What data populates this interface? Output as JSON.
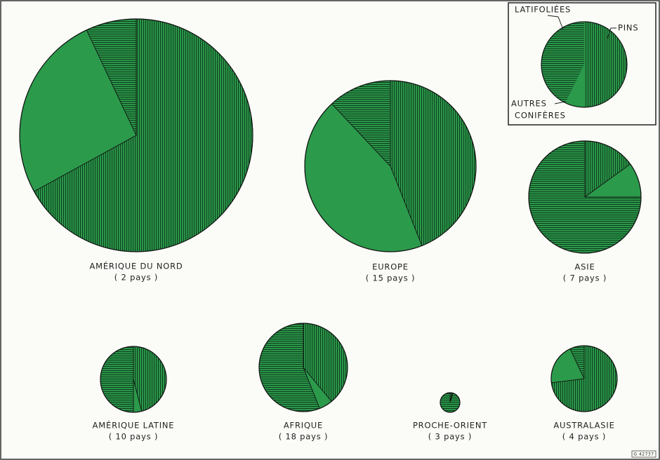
{
  "legend": {
    "categories": [
      "PINS",
      "AUTRES",
      "LATIFOLIÉES"
    ],
    "category_note": "CONIFÈRES",
    "patterns": [
      "vertical",
      "solid",
      "horizontal"
    ]
  },
  "chart_data": [
    {
      "type": "pie",
      "title": "AMÉRIQUE DU NORD",
      "subtitle": "( 2 pays )",
      "values": [
        67,
        26,
        7
      ]
    },
    {
      "type": "pie",
      "title": "EUROPE",
      "subtitle": "( 15 pays )",
      "values": [
        44,
        44,
        12
      ]
    },
    {
      "type": "pie",
      "title": "ASIE",
      "subtitle": "( 7 pays )",
      "values": [
        15,
        10,
        75
      ]
    },
    {
      "type": "pie",
      "title": "AMÉRIQUE LATINE",
      "subtitle": "( 10 pays )",
      "values": [
        46,
        4,
        50
      ]
    },
    {
      "type": "pie",
      "title": "AFRIQUE",
      "subtitle": "( 18 pays )",
      "values": [
        39,
        5,
        56
      ]
    },
    {
      "type": "pie",
      "title": "PROCHE-ORIENT",
      "subtitle": "( 3 pays )",
      "values": [
        3,
        2,
        95
      ]
    },
    {
      "type": "pie",
      "title": "AUSTRALASIE",
      "subtitle": "( 4 pays )",
      "values": [
        73,
        20,
        7
      ]
    }
  ],
  "stamp": "G 42737"
}
